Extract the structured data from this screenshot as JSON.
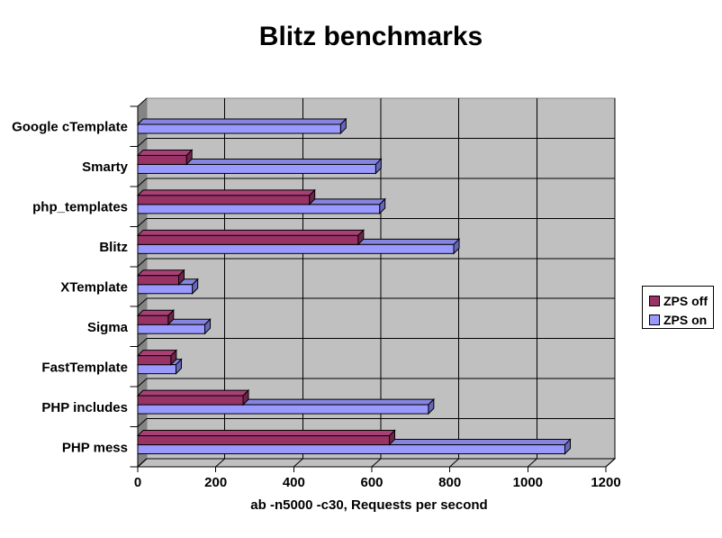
{
  "chart_data": {
    "type": "bar",
    "orientation": "horizontal",
    "title": "Blitz benchmarks",
    "xlabel": "ab -n5000 -c30, Requests per second",
    "ylabel": "",
    "categories": [
      "Google cTemplate",
      "Smarty",
      "php_templates",
      "Blitz",
      "XTemplate",
      "Sigma",
      "FastTemplate",
      "PHP includes",
      "PHP mess"
    ],
    "series": [
      {
        "name": "ZPS off",
        "color": "#993366",
        "top_color": "#A84076",
        "side_color": "#6E2449",
        "values": [
          null,
          125,
          440,
          565,
          105,
          78,
          85,
          270,
          645
        ]
      },
      {
        "name": "ZPS on",
        "color": "#9999FF",
        "top_color": "#8585E0",
        "side_color": "#6666BB",
        "values": [
          520,
          610,
          620,
          810,
          140,
          172,
          98,
          745,
          1095
        ]
      }
    ],
    "xlim": [
      0,
      1200
    ],
    "xticks": [
      0,
      200,
      400,
      600,
      800,
      1000,
      1200
    ],
    "grid": true,
    "legend_position": "right",
    "plot_bg": "#C0C0C0",
    "wall_color": "#848484",
    "wall_border": "#848284",
    "gridline_color": "#000000",
    "text_color": "#000000"
  }
}
